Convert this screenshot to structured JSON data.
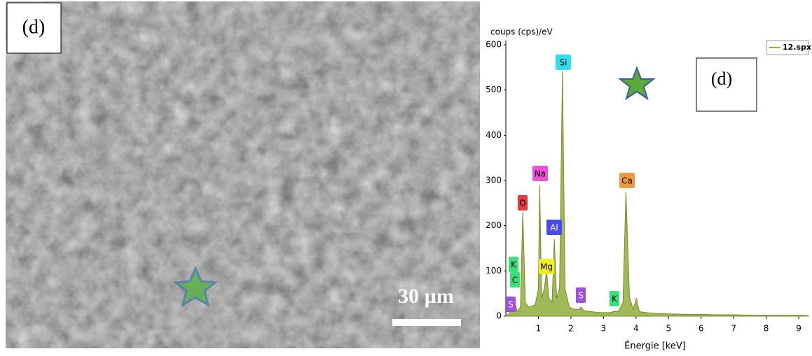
{
  "image": {
    "label": "(d)",
    "scale": "30 µm"
  },
  "chart_data": {
    "type": "line",
    "y_label": "coups (cps)/eV",
    "x_label": "Énergie [keV]",
    "annotation": "(d)",
    "xlim": [
      0,
      9.3
    ],
    "xticks": [
      1,
      2,
      3,
      4,
      5,
      6,
      7,
      8,
      9
    ],
    "ylim": [
      0,
      600
    ],
    "yticks": [
      0,
      100,
      200,
      300,
      400,
      500,
      600
    ],
    "series": [
      {
        "name": "12.spx",
        "color": "#8fae3a",
        "x": [
          0,
          0.1,
          0.2,
          0.28,
          0.35,
          0.45,
          0.52,
          0.6,
          0.7,
          0.9,
          1.0,
          1.04,
          1.1,
          1.18,
          1.25,
          1.32,
          1.42,
          1.49,
          1.56,
          1.65,
          1.74,
          1.82,
          1.95,
          2.1,
          2.25,
          2.31,
          2.4,
          2.6,
          2.9,
          3.2,
          3.31,
          3.45,
          3.6,
          3.69,
          3.8,
          3.92,
          4.01,
          4.1,
          4.3,
          4.6,
          5,
          5.5,
          6,
          6.5,
          7,
          7.5,
          8,
          8.5,
          9,
          9.3
        ],
        "values": [
          0,
          5,
          20,
          30,
          10,
          20,
          230,
          30,
          20,
          25,
          60,
          290,
          40,
          60,
          100,
          40,
          30,
          170,
          40,
          60,
          540,
          60,
          20,
          15,
          15,
          20,
          12,
          10,
          8,
          8,
          10,
          10,
          30,
          275,
          40,
          15,
          40,
          10,
          8,
          6,
          5,
          4,
          4,
          3,
          3,
          2,
          2,
          2,
          2,
          1
        ]
      }
    ],
    "peak_labels": [
      {
        "text": "K",
        "color": "#3be07a"
      },
      {
        "text": "C",
        "color": "#3be07a"
      },
      {
        "text": "S",
        "color": "#a050e0"
      },
      {
        "text": "O",
        "color": "#e83a3a"
      },
      {
        "text": "Na",
        "color": "#f050d8"
      },
      {
        "text": "Mg",
        "color": "#f0f020"
      },
      {
        "text": "Al",
        "color": "#4a4ae8"
      },
      {
        "text": "Si",
        "color": "#30e0f0"
      },
      {
        "text": "S",
        "color": "#a050e0"
      },
      {
        "text": "K",
        "color": "#3be07a"
      },
      {
        "text": "Ca",
        "color": "#f09a40"
      }
    ]
  }
}
